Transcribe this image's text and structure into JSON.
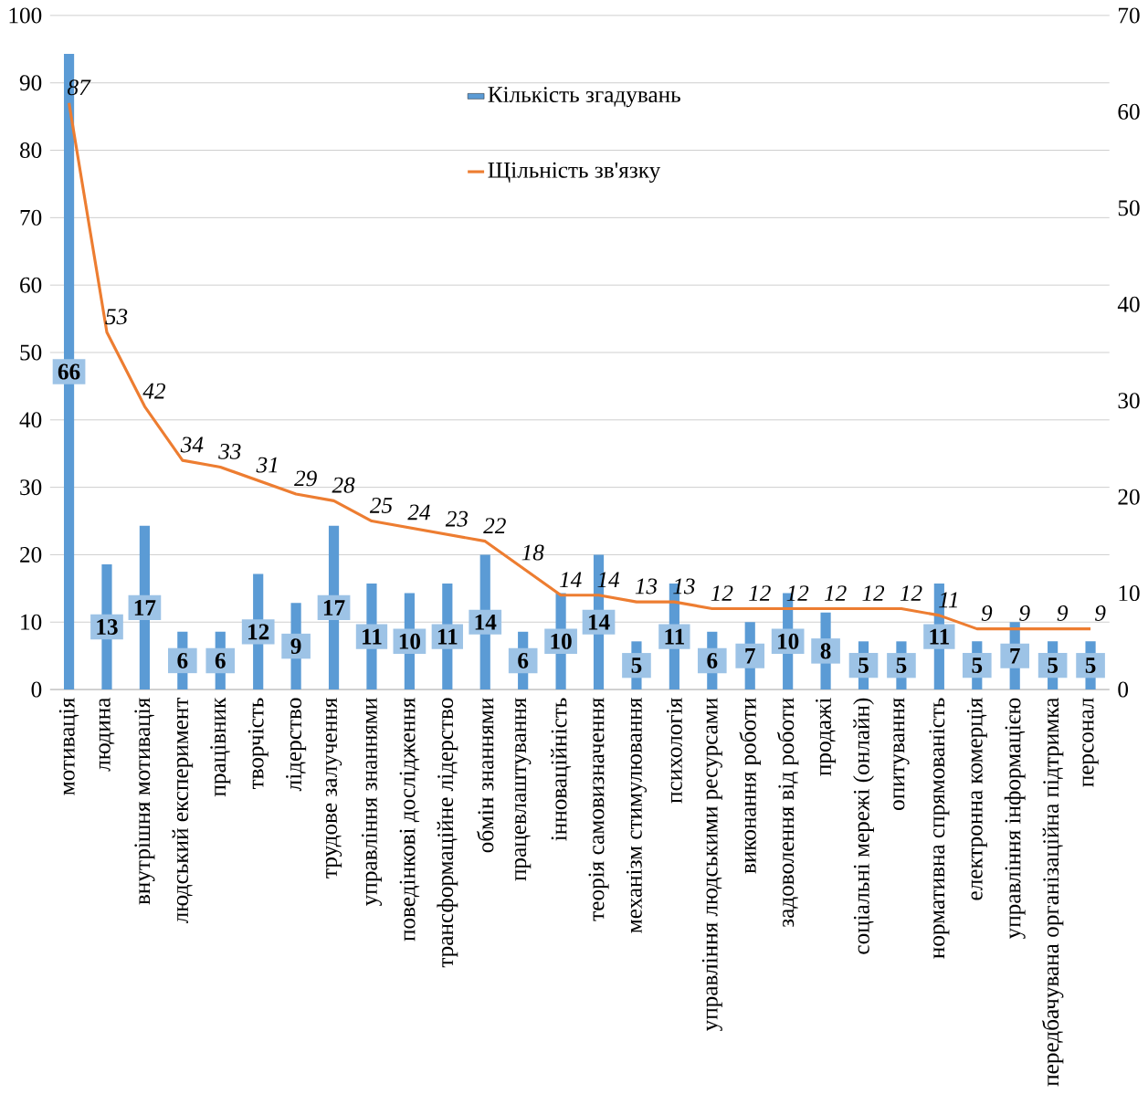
{
  "chart_data": {
    "type": "bar",
    "categories": [
      "мотивація",
      "людина",
      "внутрішня мотивація",
      "людський експеримент",
      "працівник",
      "творчість",
      "лідерство",
      "трудове залучення",
      "управління знаннями",
      "поведінкові дослідження",
      "трансформаційне лідерство",
      "обмін знаннями",
      "працевлаштування",
      "інноваційність",
      "теорія самовизначення",
      "механізм стимулювання",
      "психологія",
      "управління людськими ресурсами",
      "виконання роботи",
      "задоволення від роботи",
      "продажі",
      "соціальні мережі (онлайн)",
      "опитування",
      "нормативна спрямованість",
      "електронна комерція",
      "управління інформацією",
      "передбачувана організаційна підтримка",
      "персонал"
    ],
    "series": [
      {
        "name": "Кількість згадувань",
        "axis": "y2",
        "color": "#5b9bd5",
        "values": [
          66,
          13,
          17,
          6,
          6,
          12,
          9,
          17,
          11,
          10,
          11,
          14,
          6,
          10,
          14,
          5,
          11,
          6,
          7,
          10,
          8,
          5,
          5,
          11,
          5,
          7,
          5,
          5
        ]
      },
      {
        "name": "Щільність зв'язку",
        "type": "line",
        "axis": "y",
        "color": "#ed7d31",
        "values": [
          87,
          53,
          42,
          34,
          33,
          31,
          29,
          28,
          25,
          24,
          23,
          22,
          18,
          14,
          14,
          13,
          13,
          12,
          12,
          12,
          12,
          12,
          12,
          11,
          9,
          9,
          9,
          9
        ]
      }
    ],
    "ylim": [
      0,
      100
    ],
    "yticks": [
      0,
      10,
      20,
      30,
      40,
      50,
      60,
      70,
      80,
      90,
      100
    ],
    "y2lim": [
      0,
      70
    ],
    "y2ticks": [
      0,
      10,
      20,
      30,
      40,
      50,
      60,
      70
    ],
    "grid": "y",
    "legend": "top",
    "data_labels": true,
    "marker": "none",
    "line_style": "solid"
  }
}
